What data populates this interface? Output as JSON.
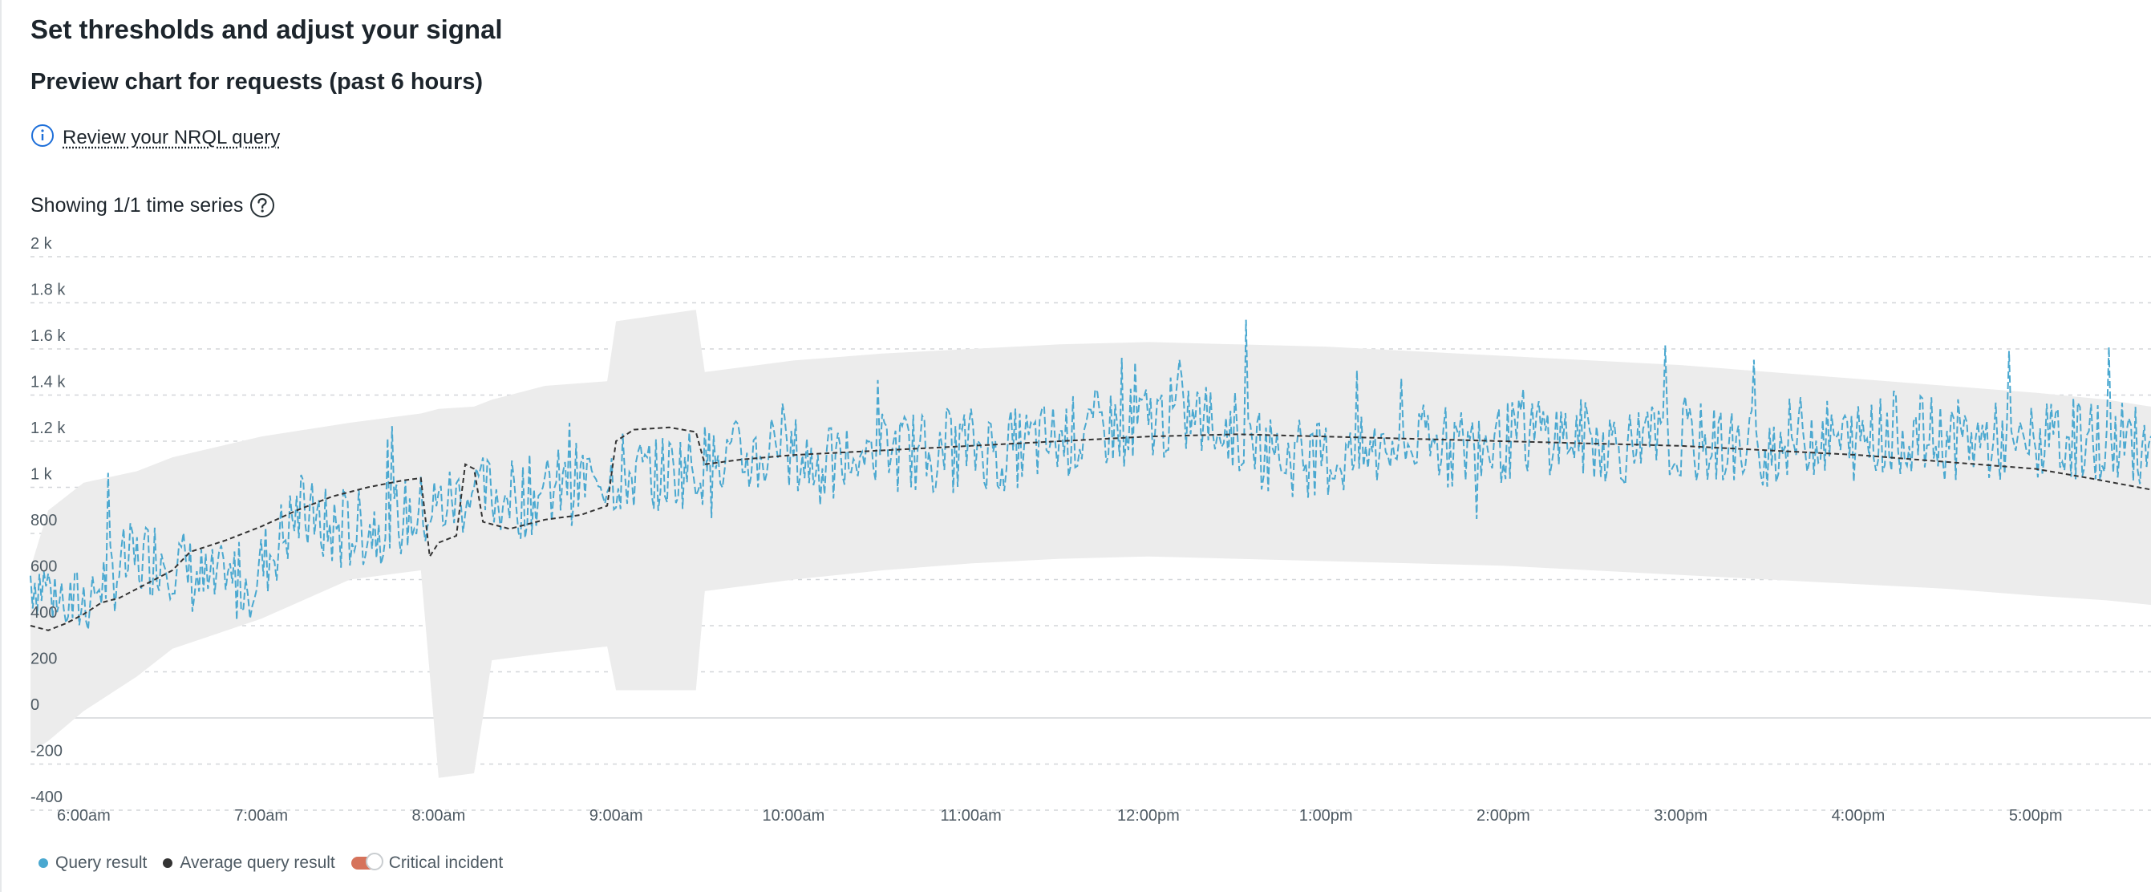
{
  "page": {
    "title": "Set thresholds and adjust your signal",
    "subtitle": "Preview chart for requests (past 6 hours)",
    "nrql_link": "Review your NRQL query",
    "series_info": "Showing 1/1 time series"
  },
  "colors": {
    "query": "#4aa8d0",
    "average": "#333333",
    "band": "#ececec",
    "critical": "#d6735b",
    "grid": "#d3d6d9",
    "info_icon": "#1e6fd9"
  },
  "legend": [
    {
      "label": "Query result",
      "color": "#4aa8d0",
      "marker": "dot"
    },
    {
      "label": "Average query result",
      "color": "#333333",
      "marker": "dot"
    },
    {
      "label": "Critical incident",
      "color": "#d6735b",
      "marker": "toggle"
    }
  ],
  "chart_data": {
    "type": "line",
    "x_ticks": [
      "6:00am",
      "7:00am",
      "8:00am",
      "9:00am",
      "10:00am",
      "11:00am",
      "12:00pm",
      "1:00pm",
      "2:00pm",
      "3:00pm",
      "4:00pm",
      "5:00pm"
    ],
    "y_ticks": [
      "2 k",
      "1.8 k",
      "1.6 k",
      "1.4 k",
      "1.2 k",
      "1 k",
      "800",
      "600",
      "400",
      "200",
      "0",
      "-200",
      "-400"
    ],
    "ylim": [
      -400,
      2000
    ],
    "xlim_hours": [
      5.7,
      17.65
    ],
    "grid": true,
    "series": [
      {
        "name": "Query result",
        "style": "dashed",
        "sample_step_hours": 0.25,
        "values": [
          620,
          480,
          650,
          720,
          560,
          600,
          880,
          800,
          850,
          900,
          980,
          950,
          1000,
          1060,
          1050,
          1100,
          1120,
          1150,
          1080,
          1170,
          1140,
          1180,
          1160,
          1200,
          1250,
          1280,
          1310,
          1260,
          1140,
          1120,
          1130,
          1190,
          1170,
          1180,
          1240,
          1210,
          1180,
          1200,
          1180,
          1170,
          1230,
          1190,
          1240,
          1210,
          1200,
          1180,
          1210,
          1200,
          1180,
          1230,
          1190,
          1190,
          1170,
          1150,
          1140,
          1100,
          1120,
          1140,
          1130,
          1080,
          1060,
          1040,
          1050,
          1040,
          1010,
          1000,
          1000,
          980,
          950
        ]
      },
      {
        "name": "Average query result",
        "style": "dashed",
        "points": [
          [
            5.7,
            400
          ],
          [
            5.8,
            380
          ],
          [
            5.9,
            410
          ],
          [
            6.0,
            450
          ],
          [
            6.1,
            500
          ],
          [
            6.2,
            520
          ],
          [
            6.3,
            560
          ],
          [
            6.4,
            600
          ],
          [
            6.5,
            640
          ],
          [
            6.6,
            720
          ],
          [
            6.8,
            770
          ],
          [
            7.0,
            830
          ],
          [
            7.2,
            900
          ],
          [
            7.4,
            960
          ],
          [
            7.6,
            1000
          ],
          [
            7.8,
            1030
          ],
          [
            7.9,
            1040
          ],
          [
            7.95,
            700
          ],
          [
            8.0,
            760
          ],
          [
            8.1,
            790
          ],
          [
            8.15,
            1100
          ],
          [
            8.2,
            1080
          ],
          [
            8.25,
            850
          ],
          [
            8.4,
            820
          ],
          [
            8.6,
            860
          ],
          [
            8.8,
            880
          ],
          [
            8.95,
            920
          ],
          [
            9.0,
            1200
          ],
          [
            9.1,
            1250
          ],
          [
            9.3,
            1260
          ],
          [
            9.45,
            1240
          ],
          [
            9.5,
            1100
          ],
          [
            9.7,
            1120
          ],
          [
            10.0,
            1140
          ],
          [
            10.5,
            1160
          ],
          [
            11.0,
            1180
          ],
          [
            11.5,
            1200
          ],
          [
            12.0,
            1220
          ],
          [
            12.5,
            1230
          ],
          [
            13.0,
            1220
          ],
          [
            13.5,
            1210
          ],
          [
            14.0,
            1200
          ],
          [
            14.5,
            1190
          ],
          [
            15.0,
            1180
          ],
          [
            15.5,
            1160
          ],
          [
            16.0,
            1140
          ],
          [
            16.5,
            1110
          ],
          [
            17.0,
            1080
          ],
          [
            17.3,
            1040
          ],
          [
            17.65,
            990
          ]
        ]
      }
    ],
    "expected_band": {
      "points": [
        [
          5.7,
          -150,
          650
        ],
        [
          5.8,
          -100,
          900
        ],
        [
          6.0,
          30,
          1020
        ],
        [
          6.3,
          180,
          1070
        ],
        [
          6.5,
          300,
          1130
        ],
        [
          7.0,
          430,
          1220
        ],
        [
          7.5,
          600,
          1280
        ],
        [
          7.9,
          640,
          1320
        ],
        [
          8.0,
          -260,
          1340
        ],
        [
          8.2,
          -240,
          1350
        ],
        [
          8.3,
          250,
          1380
        ],
        [
          8.6,
          280,
          1440
        ],
        [
          8.95,
          310,
          1460
        ],
        [
          9.0,
          120,
          1720
        ],
        [
          9.45,
          120,
          1770
        ],
        [
          9.5,
          550,
          1500
        ],
        [
          10.0,
          600,
          1550
        ],
        [
          10.5,
          640,
          1580
        ],
        [
          11.0,
          670,
          1600
        ],
        [
          11.5,
          690,
          1620
        ],
        [
          12.0,
          700,
          1630
        ],
        [
          12.5,
          690,
          1620
        ],
        [
          13.0,
          680,
          1610
        ],
        [
          13.5,
          670,
          1590
        ],
        [
          14.0,
          660,
          1570
        ],
        [
          14.5,
          640,
          1550
        ],
        [
          15.0,
          620,
          1530
        ],
        [
          15.5,
          600,
          1500
        ],
        [
          16.0,
          580,
          1470
        ],
        [
          16.5,
          560,
          1440
        ],
        [
          17.0,
          530,
          1410
        ],
        [
          17.4,
          510,
          1380
        ],
        [
          17.65,
          490,
          1350
        ]
      ]
    }
  }
}
